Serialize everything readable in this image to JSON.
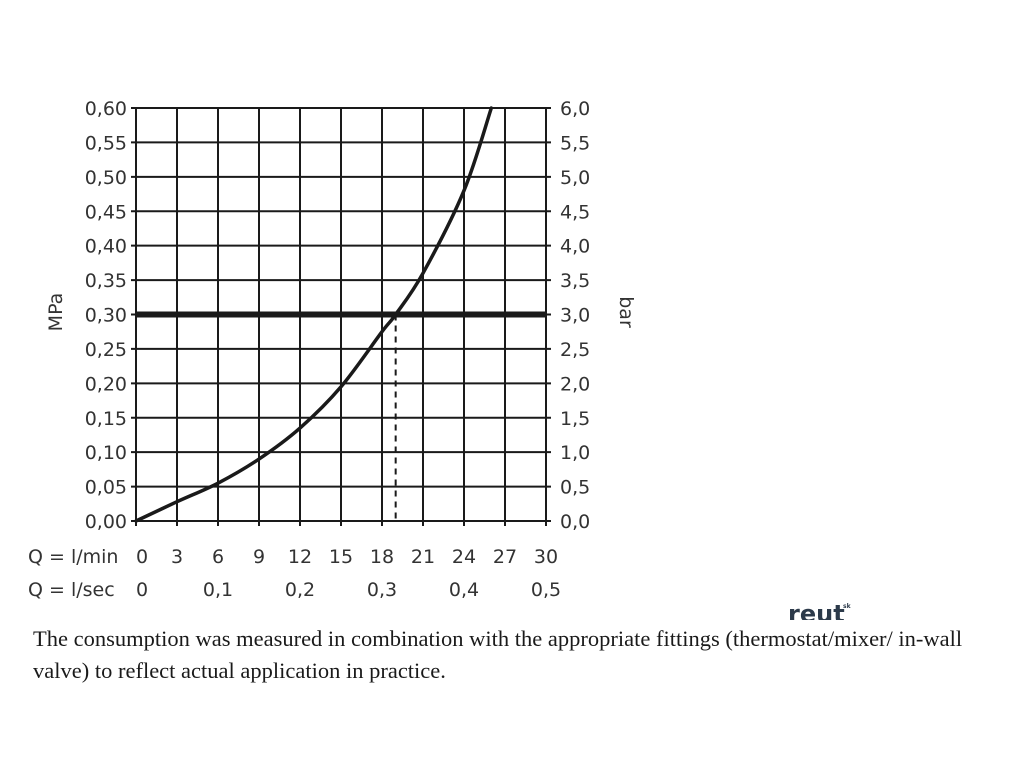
{
  "chart_data": {
    "type": "line",
    "title": "",
    "xlabel_rows": [
      {
        "label": "Q = l/min",
        "ticks": [
          "0",
          "3",
          "6",
          "9",
          "12",
          "15",
          "18",
          "21",
          "24",
          "27",
          "30"
        ]
      },
      {
        "label": "Q = l/sec",
        "ticks": [
          "0",
          "0,1",
          "0,2",
          "0,3",
          "0,4",
          "0,5"
        ]
      }
    ],
    "xlim": [
      0,
      30
    ],
    "ylabel_left": "MPa",
    "ylim_left": [
      0,
      0.6
    ],
    "yticks_left": [
      "0,00",
      "0,05",
      "0,10",
      "0,15",
      "0,20",
      "0,25",
      "0,30",
      "0,35",
      "0,40",
      "0,45",
      "0,50",
      "0,55",
      "0,60"
    ],
    "ylabel_right": "bar",
    "ylim_right": [
      0,
      6
    ],
    "yticks_right": [
      "0,0",
      "0,5",
      "1,0",
      "1,5",
      "2,0",
      "2,5",
      "3,0",
      "3,5",
      "4,0",
      "4,5",
      "5,0",
      "5,5",
      "6,0"
    ],
    "grid": true,
    "series": [
      {
        "x": [
          0,
          3,
          6,
          9,
          12,
          15,
          18,
          19,
          21,
          24,
          26
        ],
        "y": [
          0,
          0.028,
          0.055,
          0.09,
          0.135,
          0.195,
          0.275,
          0.3,
          0.36,
          0.48,
          0.6
        ]
      }
    ],
    "reference_line": {
      "y": 0.3
    },
    "reference_drop": {
      "x": 19,
      "y": 0.3
    }
  },
  "logo": {
    "text": "reut",
    "superscript": "sk"
  },
  "caption": "The consumption was measured in combination with the appropriate fittings (thermostat/mixer/ in-wall valve) to reflect actual application in practice."
}
